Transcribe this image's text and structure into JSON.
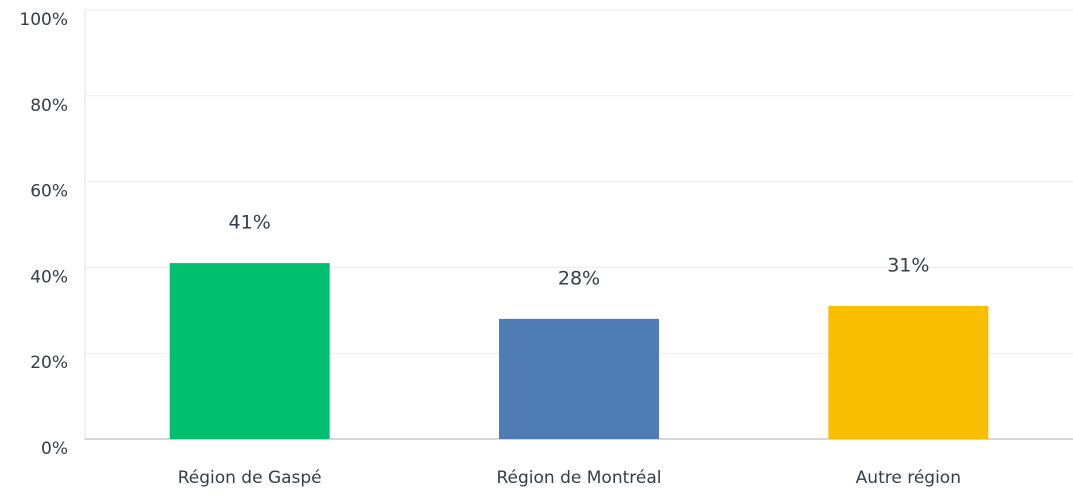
{
  "chart_data": {
    "type": "bar",
    "categories": [
      "Région de Gaspé",
      "Région de Montréal",
      "Autre région"
    ],
    "values": [
      41,
      28,
      31
    ],
    "value_labels": [
      "41%",
      "28%",
      "31%"
    ],
    "colors": [
      "#00bf6f",
      "#507cb6",
      "#f9be00"
    ],
    "ylim": [
      0,
      100
    ],
    "yticks": [
      {
        "value": 0,
        "label": "0%"
      },
      {
        "value": 20,
        "label": "20%"
      },
      {
        "value": 40,
        "label": "40%"
      },
      {
        "value": 60,
        "label": "60%"
      },
      {
        "value": 80,
        "label": "80%"
      },
      {
        "value": 100,
        "label": "100%"
      }
    ],
    "grid": true
  }
}
